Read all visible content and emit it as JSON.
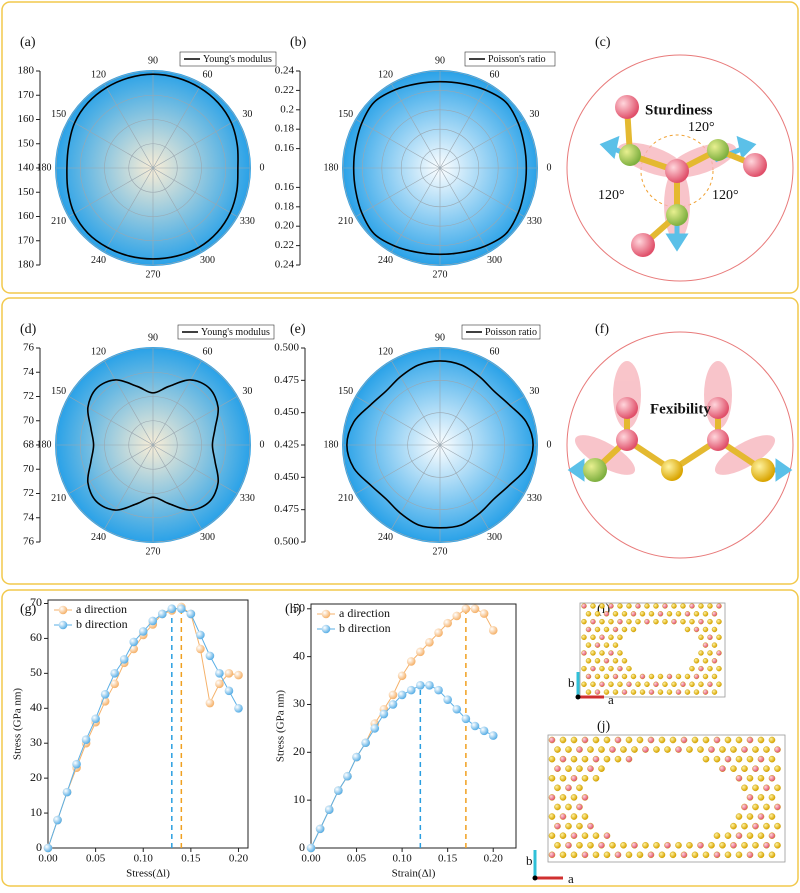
{
  "chart_data": [
    {
      "type": "polar",
      "panel": "(a)",
      "rlim": [
        140,
        180
      ],
      "rticks_upper": [
        180,
        170,
        160,
        150,
        140
      ],
      "rticks_lower": [
        150,
        160,
        170,
        180
      ],
      "angle_ticks": [
        0,
        30,
        60,
        90,
        120,
        150,
        180,
        210,
        240,
        270,
        300,
        330
      ],
      "colors": {
        "center": "#fbeed6",
        "edge": "#2aa2e8"
      },
      "theta": [
        0,
        15,
        30,
        45,
        60,
        75,
        90,
        105,
        120,
        135,
        150,
        165,
        180,
        195,
        210,
        225,
        240,
        255,
        270,
        285,
        300,
        315,
        330,
        345
      ],
      "series": [
        {
          "name": "Young's modulus",
          "color": "#000000",
          "values": [
            175,
            176,
            177.3,
            178,
            178.3,
            178.5,
            178.7,
            178.5,
            178.3,
            178,
            177.3,
            176,
            175.5,
            176.3,
            177.5,
            178,
            177.8,
            177.6,
            177.5,
            177.6,
            177.8,
            177.5,
            176.8,
            175.8
          ]
        }
      ]
    },
    {
      "type": "polar",
      "panel": "(b)",
      "rlim": [
        0.14,
        0.24
      ],
      "rticks_upper": [
        0.24,
        0.22,
        0.2,
        0.18,
        0.16
      ],
      "rticks_lower": [
        0.16,
        0.18,
        {
          "value": 0.2,
          "label": "0.20"
        },
        0.22,
        0.24
      ],
      "angle_ticks": [
        0,
        30,
        60,
        90,
        120,
        150,
        180,
        210,
        240,
        270,
        300,
        330
      ],
      "colors": {
        "center": "#ffffff",
        "edge": "#2aa2e8"
      },
      "theta": [
        0,
        15,
        30,
        45,
        60,
        75,
        90,
        105,
        120,
        135,
        150,
        165,
        180,
        195,
        210,
        225,
        240,
        255,
        270,
        285,
        300,
        315,
        330,
        345
      ],
      "series": [
        {
          "name": "Poisson's ratio",
          "color": "#000000",
          "values": [
            0.229,
            0.23,
            0.233,
            0.236,
            0.233,
            0.23,
            0.229,
            0.23,
            0.233,
            0.236,
            0.233,
            0.23,
            0.229,
            0.23,
            0.233,
            0.236,
            0.233,
            0.23,
            0.229,
            0.23,
            0.233,
            0.236,
            0.233,
            0.23
          ]
        }
      ]
    },
    {
      "type": "polar",
      "panel": "(d)",
      "rlim": [
        68,
        76
      ],
      "rticks_upper": [
        76,
        74,
        72,
        70,
        68
      ],
      "rticks_lower": [
        70,
        72,
        74,
        76
      ],
      "angle_ticks": [
        0,
        30,
        60,
        90,
        120,
        150,
        180,
        210,
        240,
        270,
        300,
        330
      ],
      "colors": {
        "center": "#fbeed6",
        "edge": "#2aa2e8"
      },
      "theta": [
        0,
        15,
        30,
        45,
        60,
        75,
        90,
        105,
        120,
        135,
        150,
        165,
        180,
        195,
        210,
        225,
        240,
        255,
        270,
        285,
        300,
        315,
        330,
        345
      ],
      "series": [
        {
          "name": "Young's modulus",
          "color": "#000000",
          "values": [
            72.9,
            73.3,
            74.2,
            74.6,
            74.2,
            73,
            72.3,
            73,
            74.2,
            74.6,
            74.2,
            73.3,
            72.9,
            73.3,
            74.2,
            74.6,
            74.2,
            73,
            72.3,
            73,
            74.2,
            74.6,
            74.2,
            73.3
          ]
        }
      ]
    },
    {
      "type": "polar",
      "panel": "(e)",
      "rlim": [
        0.425,
        0.5
      ],
      "rticks_upper": [
        {
          "value": 0.5,
          "label": "0.500"
        },
        0.475,
        {
          "value": 0.45,
          "label": "0.450"
        },
        0.425
      ],
      "rticks_lower": [
        {
          "value": 0.45,
          "label": "0.450"
        },
        0.475,
        {
          "value": 0.5,
          "label": "0.500"
        }
      ],
      "angle_ticks": [
        0,
        30,
        60,
        90,
        120,
        150,
        180,
        210,
        240,
        270,
        300,
        330
      ],
      "colors": {
        "center": "#ffffff",
        "edge": "#2aa2e8"
      },
      "theta": [
        0,
        15,
        30,
        45,
        60,
        75,
        90,
        105,
        120,
        135,
        150,
        165,
        180,
        195,
        210,
        225,
        240,
        255,
        270,
        285,
        300,
        315,
        330,
        345
      ],
      "series": [
        {
          "name": "Poisson ratio",
          "color": "#000000",
          "values": [
            0.497,
            0.494,
            0.487,
            0.484,
            0.486,
            0.489,
            0.49,
            0.489,
            0.486,
            0.484,
            0.487,
            0.494,
            0.497,
            0.494,
            0.487,
            0.484,
            0.486,
            0.489,
            0.489,
            0.489,
            0.486,
            0.484,
            0.487,
            0.494
          ]
        }
      ]
    },
    {
      "type": "line",
      "panel": "(g)",
      "x_label": "Stress(Δl)",
      "y_label": "Stress (GPa nm)",
      "xlim": [
        0,
        0.21
      ],
      "ylim": [
        0,
        71
      ],
      "xticks": [
        {
          "value": 0,
          "label": "0.00"
        },
        0.05,
        {
          "value": 0.1,
          "label": "0.10"
        },
        0.15,
        {
          "value": 0.2,
          "label": "0.20"
        }
      ],
      "yticks": [
        0,
        10,
        20,
        30,
        40,
        50,
        60,
        70
      ],
      "x": [
        0,
        0.01,
        0.02,
        0.03,
        0.04,
        0.05,
        0.06,
        0.07,
        0.08,
        0.09,
        0.1,
        0.11,
        0.12,
        0.13,
        0.14,
        0.15,
        0.16,
        0.17,
        0.18,
        0.19,
        0.2
      ],
      "series": [
        {
          "name": "a direction",
          "color": "#f5b26b",
          "peak_x": 0.14,
          "values": [
            0,
            8,
            16,
            23,
            30,
            36,
            42,
            47,
            53,
            57,
            61,
            64,
            67,
            68,
            69,
            67,
            57,
            41.5,
            47,
            50,
            49.5
          ]
        },
        {
          "name": "b direction",
          "color": "#5aafe6",
          "peak_x": 0.13,
          "values": [
            0,
            8,
            16,
            24,
            31,
            37,
            44,
            50,
            54,
            59,
            62,
            65,
            67,
            68.5,
            68.5,
            67,
            61,
            55,
            50,
            45,
            40
          ]
        }
      ]
    },
    {
      "type": "line",
      "panel": "(h)",
      "x_label": "Strain(Δl)",
      "y_label": "Stress (GPa nm)",
      "xlim": [
        0,
        0.225
      ],
      "ylim": [
        0,
        51
      ],
      "xticks": [
        {
          "value": 0,
          "label": "0.00"
        },
        0.05,
        {
          "value": 0.1,
          "label": "0.10"
        },
        0.15,
        {
          "value": 0.2,
          "label": "0.20"
        }
      ],
      "yticks": [
        0,
        10,
        20,
        30,
        40,
        50
      ],
      "x": [
        0,
        0.01,
        0.02,
        0.03,
        0.04,
        0.05,
        0.06,
        0.07,
        0.08,
        0.09,
        0.1,
        0.11,
        0.12,
        0.13,
        0.14,
        0.15,
        0.16,
        0.17,
        0.18,
        0.19,
        0.2
      ],
      "series": [
        {
          "name": "a direction",
          "color": "#f5b26b",
          "peak_x": 0.17,
          "values": [
            0,
            4,
            8,
            12,
            15,
            19,
            22,
            26,
            29,
            32,
            36,
            39,
            41,
            43,
            45,
            47,
            48.5,
            50,
            50,
            49,
            45.5
          ]
        },
        {
          "name": "b direction",
          "color": "#5aafe6",
          "peak_x": 0.12,
          "values": [
            0,
            4,
            8,
            12,
            15,
            19,
            22,
            25,
            28,
            30,
            32,
            33,
            34,
            34,
            33,
            31,
            29,
            27,
            25.5,
            24.5,
            23.5
          ]
        }
      ]
    }
  ],
  "diagrams": [
    {
      "panel": "(c)",
      "title": "Sturdiness",
      "angle_labels": [
        "120°",
        "120°",
        "120°"
      ]
    },
    {
      "panel": "(f)",
      "title": "Fexibility"
    },
    {
      "panel": "(i)",
      "axis_labels": [
        "b",
        "a"
      ]
    },
    {
      "panel": "(j)",
      "axis_labels": [
        "b",
        "a"
      ]
    }
  ]
}
